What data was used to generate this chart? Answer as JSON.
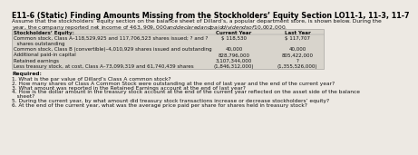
{
  "title": "E11-6 (Static) Finding Amounts Missing from the Stockholders’ Equity Section LO11-1, 11-3, 11-7",
  "intro_line1": "Assume that the stockholders’ equity section on the balance sheet of Dillard’s, a popular department store, is shown below. During the",
  "intro_line2": "year, the company reported net income of $463,909,000 and declared and paid dividends of $10,002,000.",
  "table_header": [
    "Stockholders’ Equity:",
    "Current Year",
    "Last Year"
  ],
  "table_rows": [
    [
      "Common stock, Class A–118,529,925 and 117,706,523 shares issued; ? and ?",
      "$ 118,530",
      "$ 117,707"
    ],
    [
      "  shares outstanding",
      "",
      ""
    ],
    [
      "Common stock, Class B (convertible)–4,010,929 shares issued and outstanding",
      "40,000",
      "40,000"
    ],
    [
      "Additional paid-in capital",
      "828,796,000",
      "805,422,000"
    ],
    [
      "Retained earnings",
      "3,107,344,000",
      "?"
    ],
    [
      "Less treasury stock, at cost, Class A–73,099,319 and 61,740,439 shares",
      "(1,846,312,000)",
      "(1,355,526,000)"
    ]
  ],
  "required_label": "Required:",
  "required_items": [
    "1. What is the par value of Dillard’s Class A common stock?",
    "2. How many shares of Class A Common Stock were outstanding at the end of last year and the end of the current year?",
    "3. What amount was reported in the Retained Earnings account at the end of last year?",
    "4. How is the dollar amount in the treasury stock account at the end of the current year reflected on the asset side of the balance",
    "   sheet?",
    "5. During the current year, by what amount did treasury stock transactions increase or decrease stockholders’ equity?",
    "6. At the end of the current year, what was the average price paid per share for shares held in treasury stock?"
  ],
  "bg_color": "#ede9e3",
  "title_color": "#000000",
  "text_color": "#111111",
  "table_bg": "#d8d4cc",
  "title_fontsize": 5.8,
  "body_fontsize": 4.3,
  "table_fontsize": 4.0,
  "req_fontsize": 4.3
}
